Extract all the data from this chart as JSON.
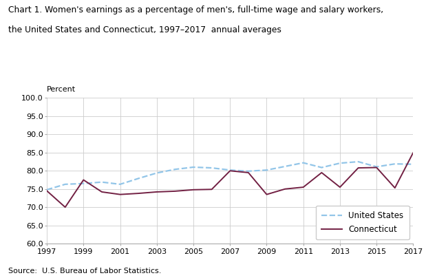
{
  "years": [
    1997,
    1998,
    1999,
    2000,
    2001,
    2002,
    2003,
    2004,
    2005,
    2006,
    2007,
    2008,
    2009,
    2010,
    2011,
    2012,
    2013,
    2014,
    2015,
    2016,
    2017
  ],
  "us_values": [
    74.8,
    76.3,
    76.5,
    76.9,
    76.3,
    77.9,
    79.4,
    80.4,
    81.0,
    80.8,
    80.2,
    79.9,
    80.2,
    81.2,
    82.2,
    80.9,
    82.1,
    82.5,
    81.1,
    81.9,
    81.8
  ],
  "ct_values": [
    74.5,
    70.0,
    77.5,
    74.2,
    73.5,
    73.8,
    74.2,
    74.4,
    74.8,
    74.9,
    80.0,
    79.5,
    73.5,
    75.0,
    75.5,
    79.5,
    75.5,
    80.8,
    80.9,
    75.3,
    85.0
  ],
  "us_color": "#92C5E8",
  "ct_color": "#722043",
  "us_label": "United States",
  "ct_label": "Connecticut",
  "title_line1": "Chart 1. Women's earnings as a percentage of men's, full-time wage and salary workers,",
  "title_line2": "the United States and Connecticut, 1997–2017  annual averages",
  "ylabel": "Percent",
  "ylim": [
    60.0,
    100.0
  ],
  "yticks": [
    60.0,
    65.0,
    70.0,
    75.0,
    80.0,
    85.0,
    90.0,
    95.0,
    100.0
  ],
  "xticks": [
    1997,
    1999,
    2001,
    2003,
    2005,
    2007,
    2009,
    2011,
    2013,
    2015,
    2017
  ],
  "source_text": "Source:  U.S. Bureau of Labor Statistics.",
  "background_color": "#ffffff",
  "grid_color": "#cccccc",
  "title_fontsize": 8.8,
  "axis_fontsize": 8.0,
  "legend_fontsize": 8.5,
  "source_fontsize": 8.0
}
